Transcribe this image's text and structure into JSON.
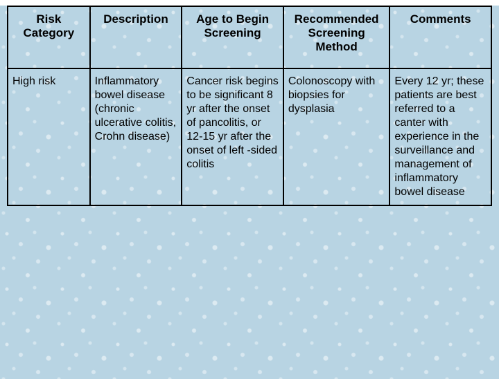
{
  "table": {
    "background_color": "#b8d4e3",
    "border_color": "#000000",
    "font_family": "Comic Sans MS",
    "headers": [
      "Risk Category",
      "Description",
      "Age to Begin Screening",
      "Recommended Screening Method",
      "Comments"
    ],
    "header_fontsize": 17,
    "header_fontweight": "bold",
    "cell_fontsize": 16,
    "column_widths_pct": [
      17,
      19,
      21,
      22,
      21
    ],
    "rows": [
      [
        "High risk",
        "Inflammatory bowel disease (chronic ulcerative colitis, Crohn disease)",
        "Cancer risk begins to be significant 8 yr after the onset of pancolitis, or 12-15 yr after the onset of left -sided colitis",
        "Colonoscopy with biopsies for dysplasia",
        "Every 12 yr; these patients are best referred to a canter with experience in the surveillance and management of inflammatory bowel disease"
      ]
    ]
  }
}
